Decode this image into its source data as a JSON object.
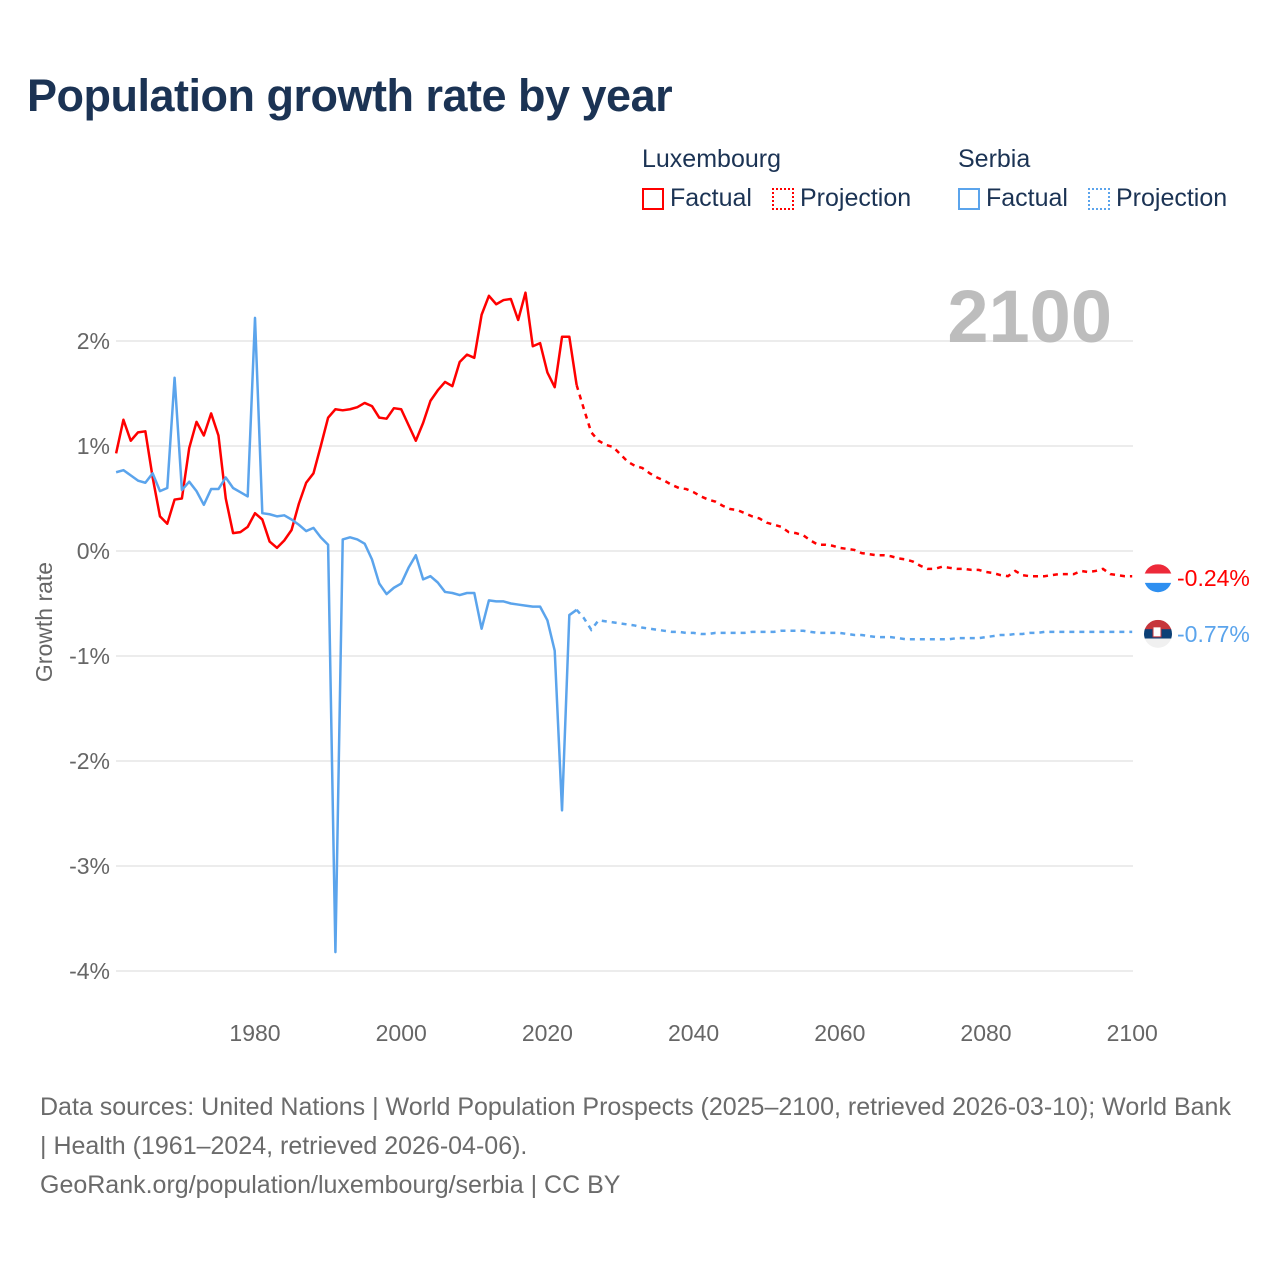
{
  "title": "Population growth rate by year",
  "legend": {
    "groups": [
      {
        "name": "Luxembourg",
        "factual": "Factual",
        "projection": "Projection",
        "color": "#ff0000"
      },
      {
        "name": "Serbia",
        "factual": "Factual",
        "projection": "Projection",
        "color": "#5ba4ec"
      }
    ]
  },
  "footer": {
    "sources": "Data sources: United Nations | World Population Prospects (2025–2100, retrieved 2026-03-10); World Bank | Health (1961–2024, retrieved 2026-04-06).",
    "credit": "GeoRank.org/population/luxembourg/serbia | CC BY"
  },
  "chart_data": {
    "type": "line",
    "title": "Population growth rate by year",
    "year_label": "2100",
    "xlabel": "",
    "ylabel": "Growth rate",
    "xlim": [
      1961,
      2100
    ],
    "ylim": [
      -4.2,
      2.6
    ],
    "xticks": [
      1980,
      2000,
      2020,
      2040,
      2060,
      2080,
      2100
    ],
    "yticks": [
      2,
      1,
      0,
      -1,
      -2,
      -3,
      -4
    ],
    "ytick_labels": [
      "2%",
      "1%",
      "0%",
      "-1%",
      "-2%",
      "-3%",
      "-4%"
    ],
    "grid": true,
    "series": [
      {
        "name": "Luxembourg",
        "color": "#ff0000",
        "end_label": "-0.24%",
        "factual_start": 1961,
        "factual": [
          0.93,
          1.25,
          1.05,
          1.13,
          1.14,
          0.7,
          0.33,
          0.26,
          0.49,
          0.5,
          0.98,
          1.23,
          1.1,
          1.31,
          1.1,
          0.5,
          0.17,
          0.18,
          0.23,
          0.36,
          0.3,
          0.09,
          0.03,
          0.1,
          0.2,
          0.45,
          0.65,
          0.74,
          1.0,
          1.27,
          1.35,
          1.34,
          1.35,
          1.37,
          1.41,
          1.38,
          1.27,
          1.26,
          1.36,
          1.35,
          1.2,
          1.05,
          1.22,
          1.43,
          1.53,
          1.61,
          1.57,
          1.8,
          1.87,
          1.84,
          2.25,
          2.43,
          2.35,
          2.39,
          2.4,
          2.2,
          2.46,
          1.95,
          1.98,
          1.7,
          1.56,
          2.04,
          2.04,
          1.58
        ],
        "projection_start": 2025,
        "projection": [
          1.35,
          1.13,
          1.05,
          1.01,
          0.99,
          0.92,
          0.85,
          0.81,
          0.79,
          0.74,
          0.7,
          0.67,
          0.63,
          0.6,
          0.59,
          0.56,
          0.52,
          0.49,
          0.47,
          0.43,
          0.4,
          0.39,
          0.36,
          0.33,
          0.31,
          0.27,
          0.25,
          0.23,
          0.18,
          0.17,
          0.15,
          0.1,
          0.06,
          0.06,
          0.05,
          0.03,
          0.02,
          0.01,
          -0.02,
          -0.03,
          -0.04,
          -0.04,
          -0.05,
          -0.07,
          -0.08,
          -0.1,
          -0.14,
          -0.17,
          -0.17,
          -0.15,
          -0.16,
          -0.17,
          -0.17,
          -0.18,
          -0.18,
          -0.2,
          -0.21,
          -0.23,
          -0.24,
          -0.19,
          -0.23,
          -0.24,
          -0.24,
          -0.24,
          -0.23,
          -0.22,
          -0.22,
          -0.22,
          -0.19,
          -0.2,
          -0.19,
          -0.17,
          -0.22,
          -0.23,
          -0.24,
          -0.24
        ]
      },
      {
        "name": "Serbia",
        "color": "#5ba4ec",
        "end_label": "-0.77%",
        "factual_start": 1961,
        "factual": [
          0.75,
          0.77,
          0.72,
          0.67,
          0.65,
          0.74,
          0.57,
          0.6,
          1.65,
          0.58,
          0.66,
          0.57,
          0.44,
          0.59,
          0.59,
          0.7,
          0.6,
          0.56,
          0.52,
          2.22,
          0.36,
          0.35,
          0.33,
          0.34,
          0.3,
          0.25,
          0.19,
          0.22,
          0.13,
          0.06,
          -3.82,
          0.11,
          0.13,
          0.11,
          0.07,
          -0.08,
          -0.31,
          -0.41,
          -0.35,
          -0.31,
          -0.16,
          -0.04,
          -0.27,
          -0.24,
          -0.3,
          -0.39,
          -0.4,
          -0.42,
          -0.4,
          -0.4,
          -0.74,
          -0.47,
          -0.48,
          -0.48,
          -0.5,
          -0.51,
          -0.52,
          -0.53,
          -0.53,
          -0.66,
          -0.95,
          -2.47,
          -0.61,
          -0.56
        ],
        "projection_start": 2025,
        "projection": [
          -0.64,
          -0.75,
          -0.66,
          -0.67,
          -0.68,
          -0.69,
          -0.7,
          -0.71,
          -0.73,
          -0.74,
          -0.75,
          -0.76,
          -0.77,
          -0.77,
          -0.78,
          -0.78,
          -0.79,
          -0.79,
          -0.78,
          -0.78,
          -0.78,
          -0.78,
          -0.78,
          -0.77,
          -0.77,
          -0.77,
          -0.77,
          -0.76,
          -0.76,
          -0.76,
          -0.76,
          -0.77,
          -0.78,
          -0.78,
          -0.78,
          -0.78,
          -0.79,
          -0.8,
          -0.8,
          -0.81,
          -0.82,
          -0.82,
          -0.82,
          -0.83,
          -0.84,
          -0.84,
          -0.84,
          -0.84,
          -0.84,
          -0.84,
          -0.84,
          -0.83,
          -0.83,
          -0.83,
          -0.83,
          -0.82,
          -0.81,
          -0.8,
          -0.8,
          -0.79,
          -0.79,
          -0.78,
          -0.78,
          -0.77,
          -0.77,
          -0.77,
          -0.77,
          -0.77,
          -0.77,
          -0.77,
          -0.77,
          -0.77,
          -0.77,
          -0.77,
          -0.77,
          -0.77
        ]
      }
    ]
  }
}
